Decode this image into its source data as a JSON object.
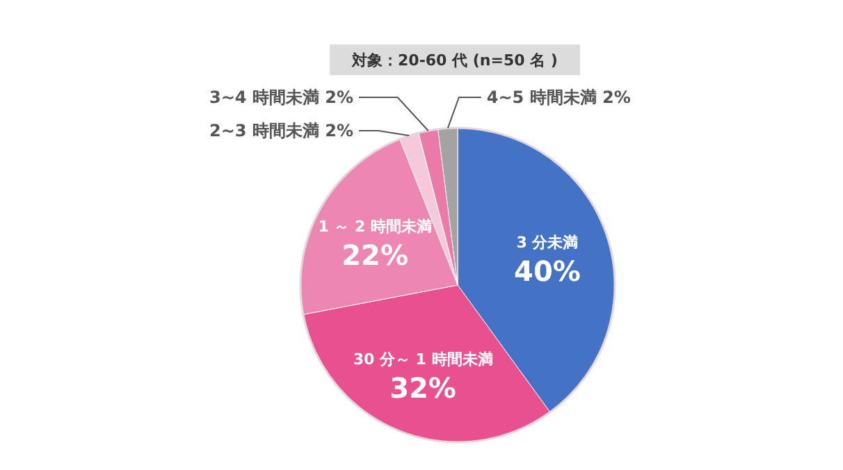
{
  "chart_data": {
    "type": "pie",
    "annotations": [
      "対象：20-60 代 (n=50 名 )"
    ],
    "categories": [
      "3 分未満",
      "30 分～ 1 時間未満",
      "1 ～ 2 時間未満",
      "2~3 時間未満",
      "3~4 時間未満",
      "4~5 時間未満"
    ],
    "values": [
      40,
      32,
      22,
      2,
      2,
      2
    ],
    "value_labels": [
      "40%",
      "32%",
      "22%",
      "2%",
      "2%",
      "2%"
    ],
    "colors": [
      "#4472c4",
      "#e8508f",
      "#ee86b2",
      "#f5c8da",
      "#ea7aa8",
      "#a3a3a3"
    ]
  }
}
